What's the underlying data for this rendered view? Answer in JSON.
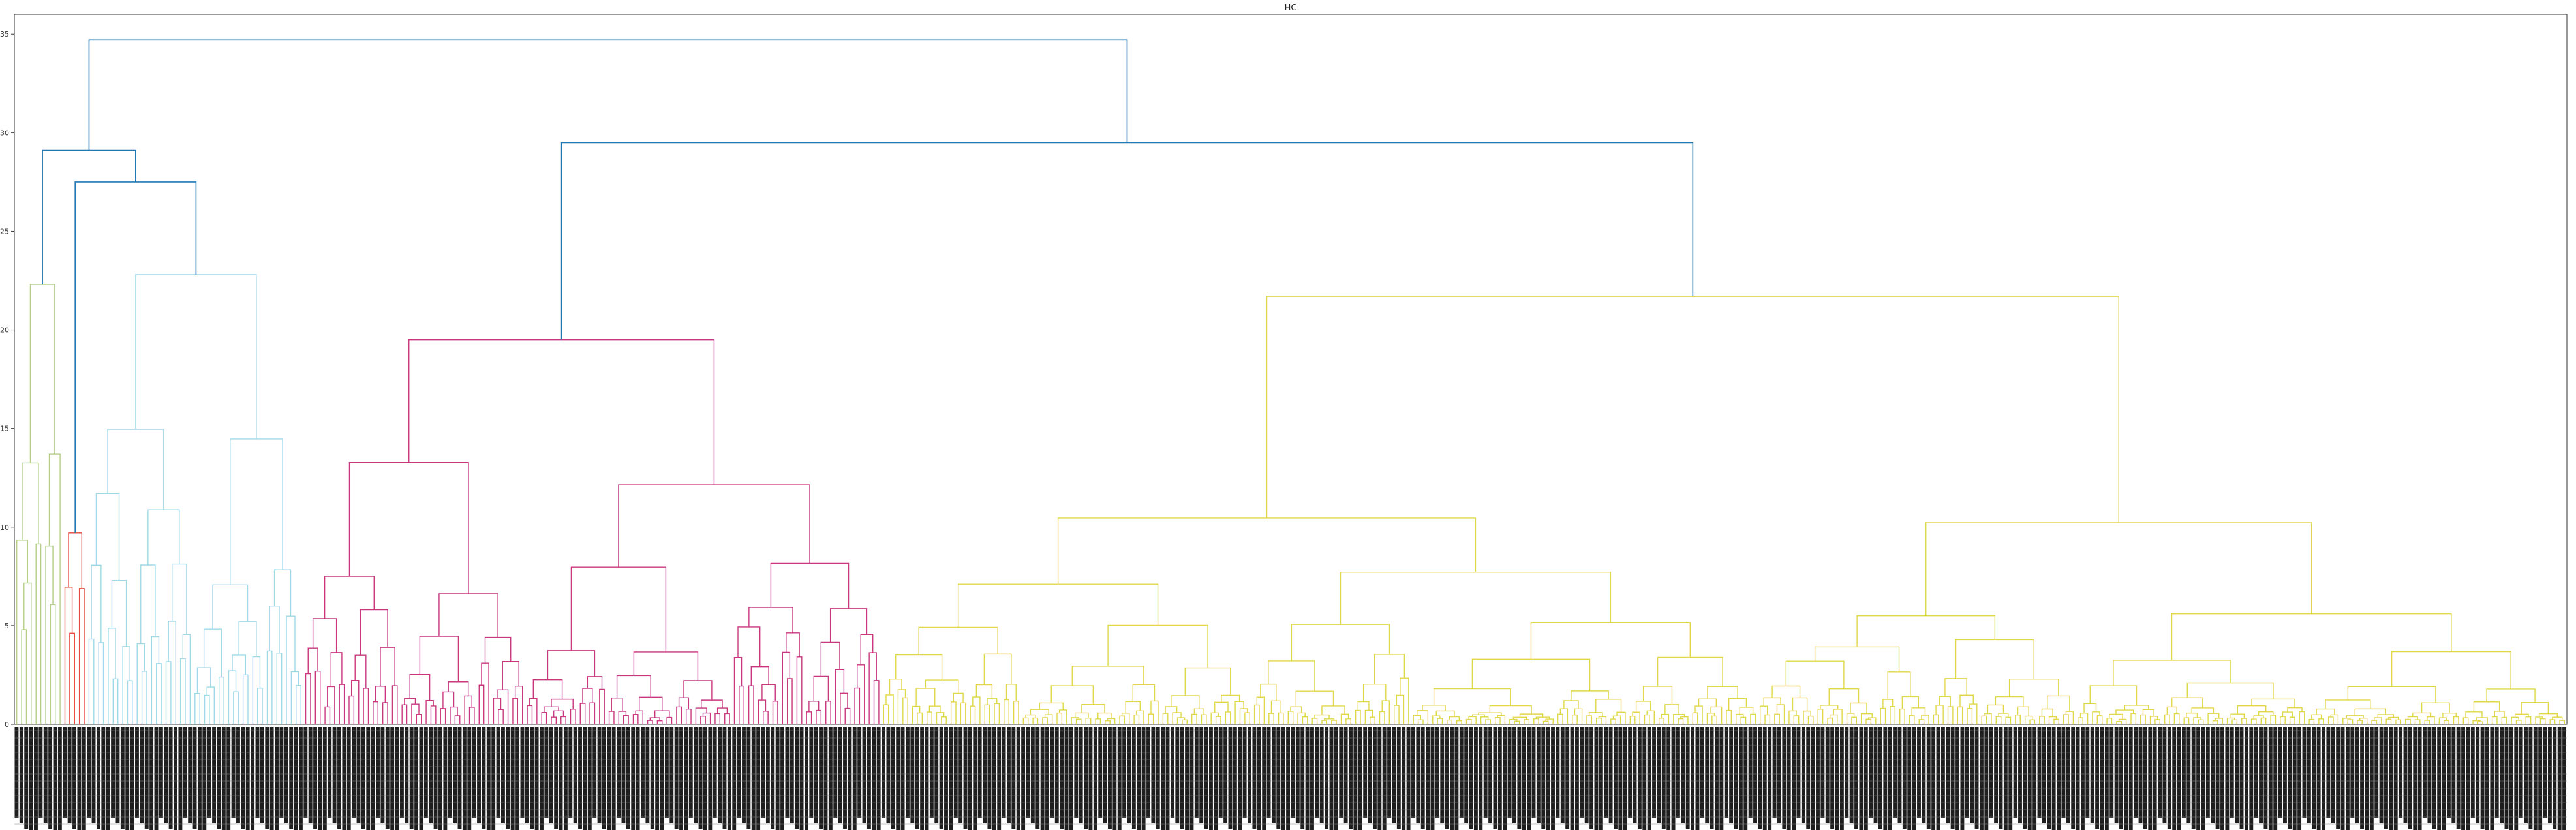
{
  "chart_data": {
    "type": "dendrogram",
    "title": "HC",
    "xlabel": "",
    "ylabel": "",
    "ylim": [
      0,
      36
    ],
    "yticks": [
      0,
      5,
      10,
      15,
      20,
      25,
      30,
      35
    ],
    "grid": false,
    "legend": "none",
    "leaf_labels_legible": false,
    "clusters": [
      {
        "color": "#b5cf88",
        "leaf_count": 10,
        "top_height": 22.3
      },
      {
        "color": "#e8483c",
        "leaf_count": 5,
        "top_height": 9.7
      },
      {
        "color": "#9fd9e8",
        "leaf_count": 45,
        "top_height": 22.8
      },
      {
        "color": "#c8377f",
        "leaf_count": 120,
        "top_height": 19.5
      },
      {
        "color": "#e0d84a",
        "leaf_count": 350,
        "top_height": 21.7
      }
    ],
    "above_threshold_color": "#1f77b4",
    "top_merges": [
      {
        "left": "green+red",
        "right": "blue",
        "height": 29.1
      },
      {
        "left": "red",
        "right": "blue",
        "height": 27.5
      },
      {
        "left": "magenta",
        "right": "yellow",
        "height": 29.5
      },
      {
        "left": "left-group",
        "right": "right-group",
        "height": 34.7
      }
    ]
  }
}
